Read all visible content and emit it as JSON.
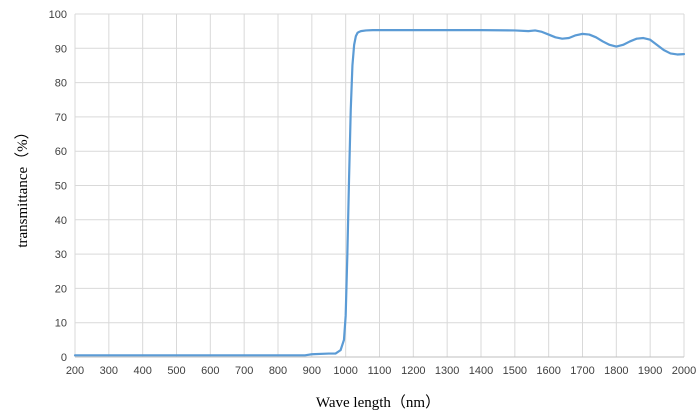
{
  "chart_data": {
    "type": "line",
    "xlabel": "Wave length（nm）",
    "ylabel": "transmittance（%）",
    "xlim": [
      200,
      2000
    ],
    "ylim": [
      0,
      100
    ],
    "x_ticks": [
      "200",
      "300",
      "400",
      "500",
      "600",
      "700",
      "800",
      "900",
      "1000",
      "1100",
      "1200",
      "1300",
      "1400",
      "1500",
      "1600",
      "1700",
      "1800",
      "1900",
      "2000"
    ],
    "y_ticks": [
      "0",
      "10",
      "20",
      "30",
      "40",
      "50",
      "60",
      "70",
      "80",
      "90",
      "100"
    ],
    "grid": true,
    "legend": "none",
    "series": [
      {
        "color": "#5b9bd5",
        "x": [
          200,
          400,
          600,
          800,
          880,
          900,
          950,
          970,
          985,
          995,
          1000,
          1005,
          1010,
          1015,
          1020,
          1025,
          1030,
          1035,
          1040,
          1045,
          1060,
          1080,
          1100,
          1200,
          1300,
          1400,
          1500,
          1540,
          1560,
          1580,
          1600,
          1620,
          1640,
          1660,
          1680,
          1700,
          1720,
          1740,
          1760,
          1780,
          1800,
          1820,
          1840,
          1860,
          1880,
          1900,
          1920,
          1940,
          1960,
          1980,
          2000
        ],
        "y": [
          0.5,
          0.5,
          0.5,
          0.5,
          0.5,
          0.8,
          1.0,
          1.0,
          2.0,
          5.0,
          12.0,
          30.0,
          52.0,
          72.0,
          85.0,
          91.0,
          93.5,
          94.5,
          94.8,
          95.0,
          95.2,
          95.3,
          95.3,
          95.3,
          95.3,
          95.3,
          95.2,
          95.0,
          95.2,
          94.8,
          94.0,
          93.2,
          92.8,
          93.0,
          93.8,
          94.2,
          94.0,
          93.2,
          92.0,
          91.0,
          90.5,
          91.0,
          92.0,
          92.8,
          93.0,
          92.5,
          91.0,
          89.5,
          88.5,
          88.2,
          88.3
        ]
      }
    ]
  }
}
